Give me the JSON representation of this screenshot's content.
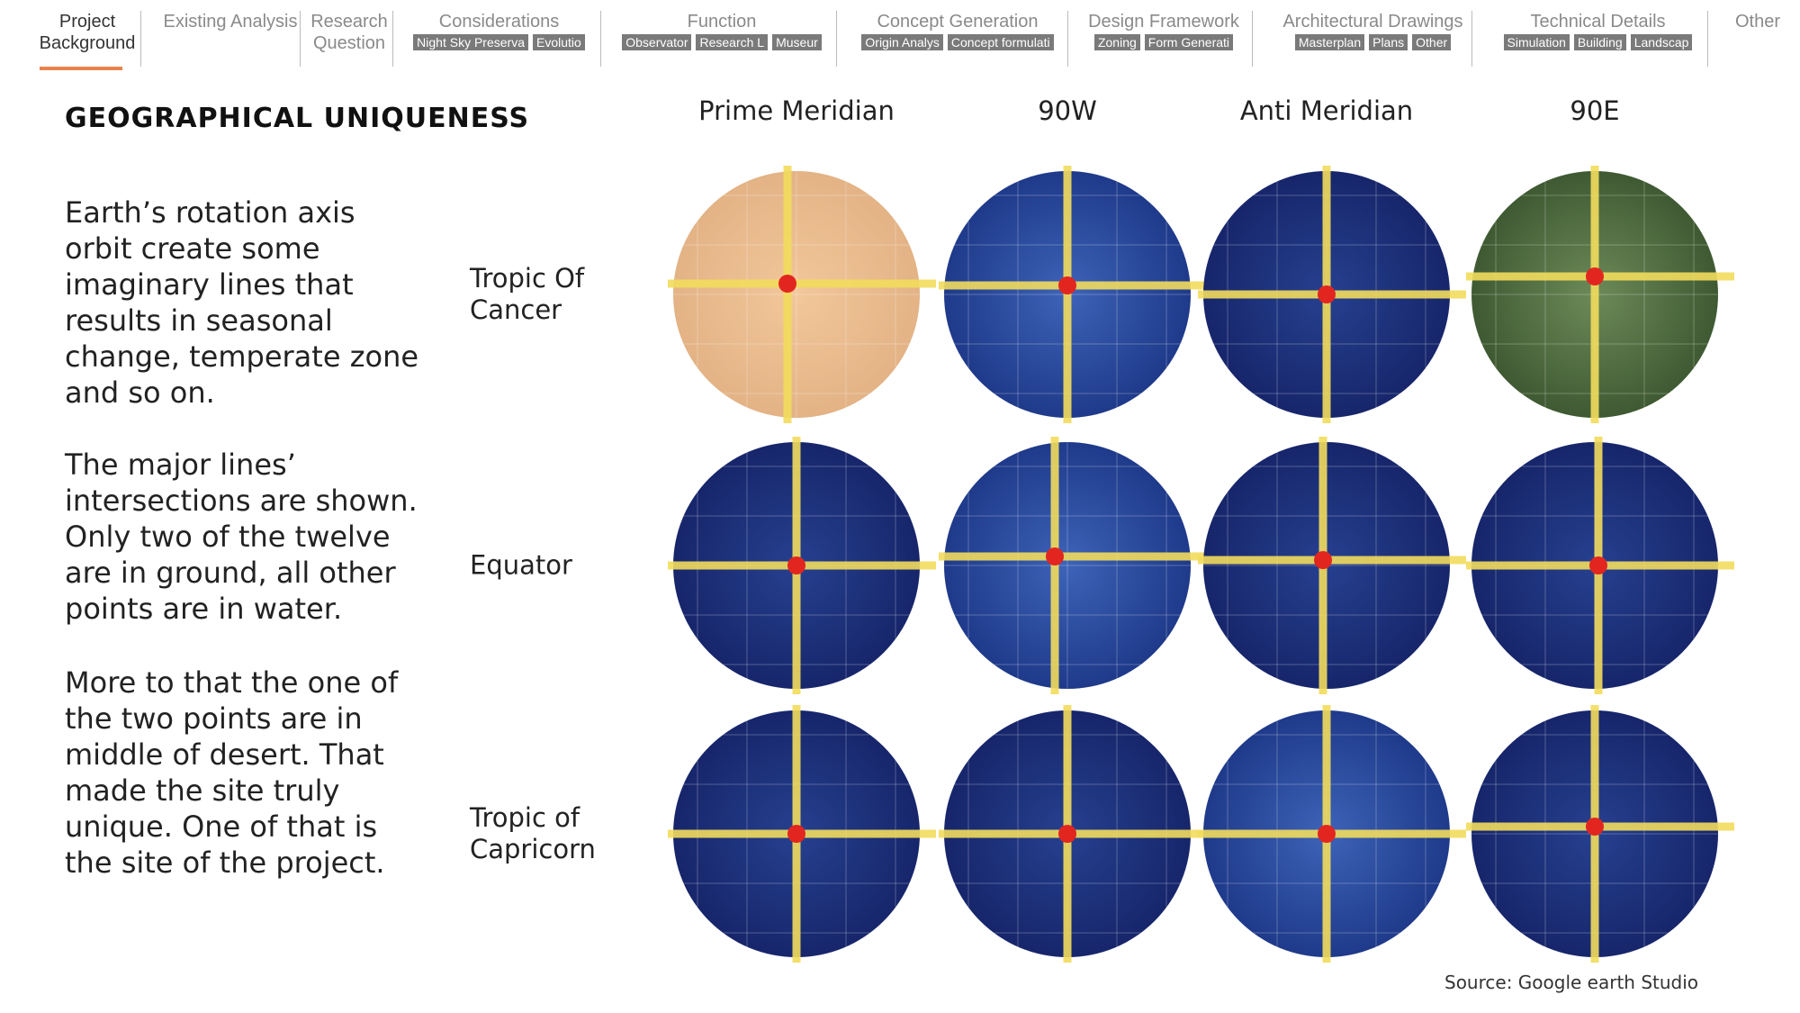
{
  "nav": {
    "tabs": [
      {
        "label": "Project Background"
      },
      {
        "label": "Existing Analysis"
      },
      {
        "label": "Research Question"
      },
      {
        "label": "Considerations",
        "items": [
          "Night Sky Preserva",
          "Evolutio"
        ]
      },
      {
        "label": "Function",
        "items": [
          "Observator",
          "Research L",
          "Museur"
        ]
      },
      {
        "label": "Concept Generation",
        "items": [
          "Origin Analys",
          "Concept formulati"
        ]
      },
      {
        "label": "Design Framework",
        "items": [
          "Zoning",
          "Form Generati"
        ]
      },
      {
        "label": "Architectural Drawings",
        "items": [
          "Masterplan",
          "Plans",
          "Other"
        ]
      },
      {
        "label": "Technical Details",
        "items": [
          "Simulation",
          "Building",
          "Landscap"
        ]
      },
      {
        "label": "Other"
      }
    ]
  },
  "title": "GEOGRAPHICAL UNIQUENESS",
  "paragraphs": [
    "Earth’s rotation axis orbit create some imaginary lines that results in seasonal change, temperate zone and so on.",
    "The major lines’ intersections are shown. Only two of the twelve are in ground, all other points are in water.",
    "More to that the one of the two points are in middle of desert.  That made the site truly unique. One of that is the site of the project."
  ],
  "grid": {
    "columns": [
      "Prime Meridian",
      "90W",
      "Anti Meridian",
      "90E"
    ],
    "rows": [
      "Tropic Of Cancer",
      "Equator",
      "Tropic of Capricorn"
    ]
  },
  "source": "Source: Google earth Studio"
}
